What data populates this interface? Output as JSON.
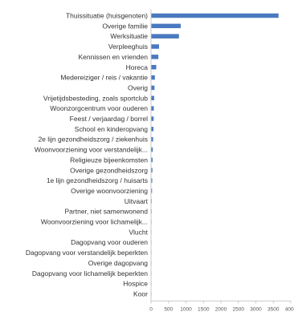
{
  "chart_data": {
    "type": "bar",
    "orientation": "horizontal",
    "title": "",
    "xlabel": "",
    "ylabel": "",
    "xlim": [
      0,
      4000
    ],
    "x_ticks": [
      "0",
      "500",
      "1000",
      "1500",
      "2000",
      "2500",
      "3000",
      "3500",
      "4000"
    ],
    "grid": false,
    "legend": "none",
    "colors": {
      "bar": "#4a79c0",
      "axis": "#c8c8c8"
    },
    "categories": [
      "Thuissituatie (huisgenoten)",
      "Overige familie",
      "Werksituatie",
      "Verpleeghuis",
      "Kennissen en vrienden",
      "Horeca",
      "Medereiziger / reis / vakantie",
      "Overig",
      "Vrijetijdsbesteding, zoals sportclub",
      "Woonzorgcentrum voor ouderen",
      "Feest / verjaardag / borrel",
      "School en kinderopvang",
      "2e lijn gezondheidszorg / ziekenhuis",
      "Woonvoorziening voor verstandelijk...",
      "Religieuze bijeenkomsten",
      "Overige gezondheidszorg",
      "1e lijn gezondheidszorg / huisarts",
      "Overige woonvoorziening",
      "Uitvaart",
      "Partner, niet samenwonend",
      "Woonvoorziening voor lichamelijk...",
      "Vlucht",
      "Dagopvang voor ouderen",
      "Dagopvang voor verstandelijk beperkten",
      "Overige dagopvang",
      "Dagopvang voor lichamelijk beperkten",
      "Hospice",
      "Koor"
    ],
    "values": [
      3650,
      850,
      800,
      230,
      210,
      150,
      110,
      100,
      90,
      80,
      75,
      70,
      60,
      50,
      45,
      40,
      35,
      30,
      20,
      18,
      15,
      10,
      8,
      6,
      5,
      4,
      3,
      2
    ]
  }
}
